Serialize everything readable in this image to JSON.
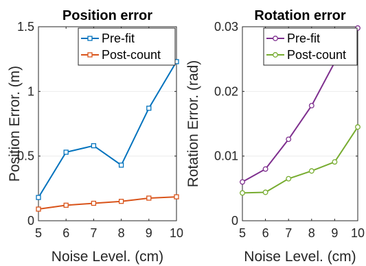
{
  "chart_data": [
    {
      "type": "line",
      "title": "Position error",
      "xlabel": "Noise Level. (cm)",
      "ylabel": "Position Error. (m)",
      "x": [
        5,
        6,
        7,
        8,
        9,
        10
      ],
      "xlim": [
        5,
        10
      ],
      "ylim": [
        0,
        1.5
      ],
      "xticks": [
        "5",
        "6",
        "7",
        "8",
        "9",
        "10"
      ],
      "yticks": [
        {
          "value": 0,
          "label": "0"
        },
        {
          "value": 0.5,
          "label": "0.5"
        },
        {
          "value": 1,
          "label": "1"
        },
        {
          "value": 1.5,
          "label": "1.5"
        }
      ],
      "grid": true,
      "legend": "top-right",
      "series": [
        {
          "name": "Pre-fit",
          "color": "#0072BD",
          "marker": "square",
          "values": [
            0.18,
            0.53,
            0.58,
            0.43,
            0.87,
            1.23
          ]
        },
        {
          "name": "Post-count",
          "color": "#D95319",
          "marker": "square",
          "values": [
            0.09,
            0.12,
            0.135,
            0.15,
            0.175,
            0.185
          ]
        }
      ]
    },
    {
      "type": "line",
      "title": "Rotation error",
      "xlabel": "Noise Level. (cm)",
      "ylabel": "Rotation Error. (rad)",
      "x": [
        5,
        6,
        7,
        8,
        9,
        10
      ],
      "xlim": [
        5,
        10
      ],
      "ylim": [
        0,
        0.03
      ],
      "xticks": [
        "5",
        "6",
        "7",
        "8",
        "9",
        "10"
      ],
      "yticks": [
        {
          "value": 0,
          "label": "0"
        },
        {
          "value": 0.01,
          "label": "0.01"
        },
        {
          "value": 0.02,
          "label": "0.02"
        },
        {
          "value": 0.03,
          "label": "0.03"
        }
      ],
      "grid": true,
      "legend": "top-right",
      "series": [
        {
          "name": "Pre-fit",
          "color": "#7E2F8E",
          "marker": "circle",
          "values": [
            0.006,
            0.008,
            0.0126,
            0.0178,
            0.0245,
            0.0298
          ]
        },
        {
          "name": "Post-count",
          "color": "#77AC30",
          "marker": "circle",
          "values": [
            0.0043,
            0.0044,
            0.0065,
            0.0077,
            0.0091,
            0.0145
          ]
        }
      ]
    }
  ]
}
